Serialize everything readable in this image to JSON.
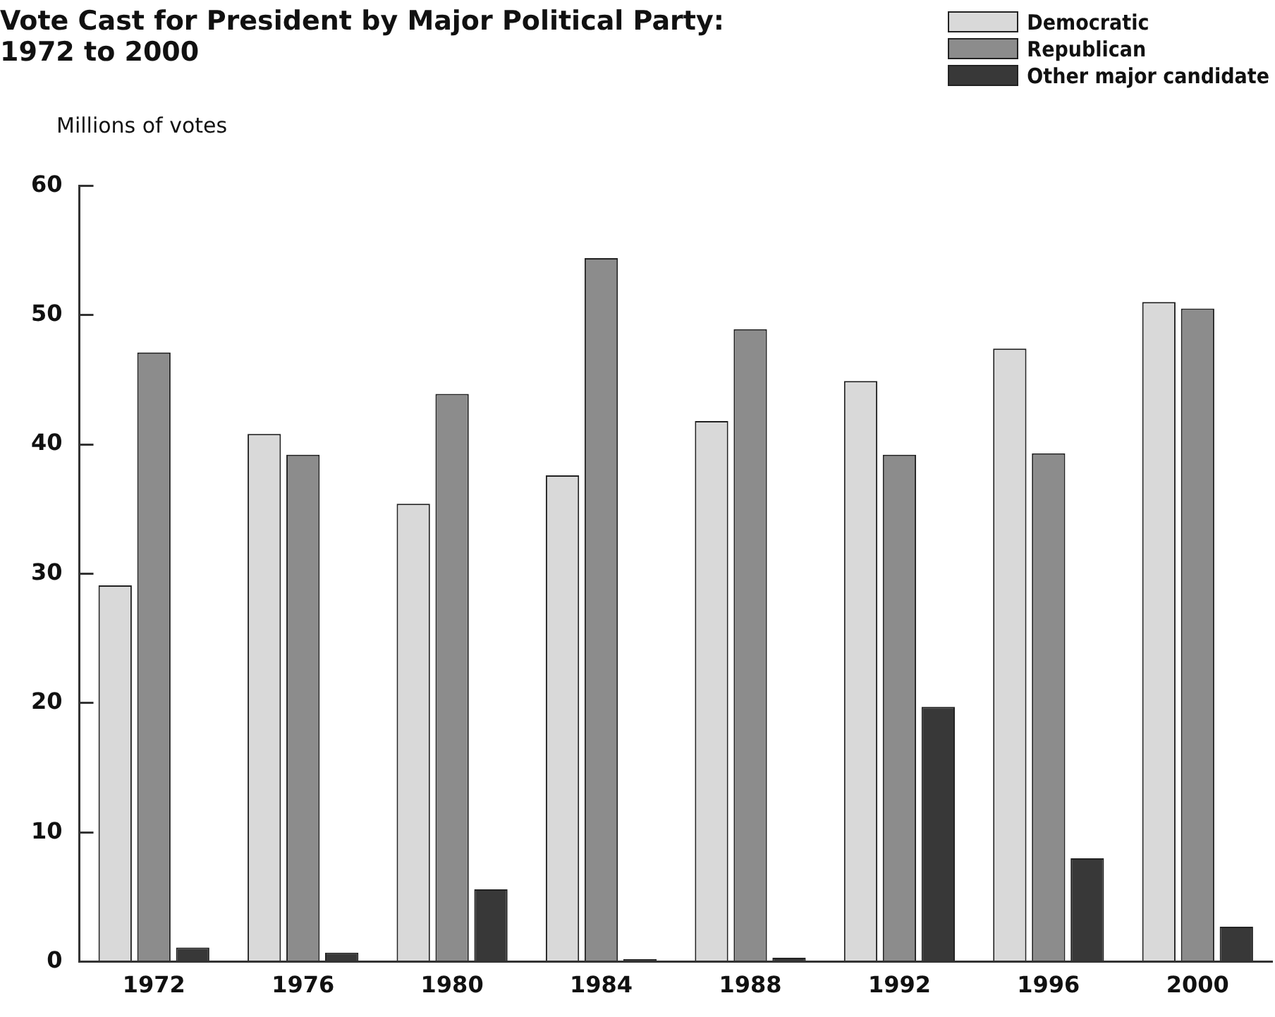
{
  "chart_data": {
    "type": "bar",
    "title": "Vote Cast for President by Major Political Party: 1972 to 2000",
    "ylabel": "Millions of votes",
    "categories": [
      "1972",
      "1976",
      "1980",
      "1984",
      "1988",
      "1992",
      "1996",
      "2000"
    ],
    "series": [
      {
        "name": "Democratic",
        "color": "#d9d9d9",
        "values": [
          29.1,
          40.8,
          35.4,
          37.6,
          41.8,
          44.9,
          47.4,
          51.0
        ]
      },
      {
        "name": "Republican",
        "color": "#8c8c8c",
        "values": [
          47.1,
          39.2,
          43.9,
          54.4,
          48.9,
          39.2,
          39.3,
          50.5
        ]
      },
      {
        "name": "Other major candidate",
        "color": "#383838",
        "values": [
          1.1,
          0.7,
          5.6,
          0.2,
          0.3,
          19.7,
          8.0,
          2.7
        ]
      }
    ],
    "ylim": [
      0,
      60
    ],
    "yticks": [
      0,
      10,
      20,
      30,
      40,
      50,
      60
    ],
    "grid": false,
    "legend": "top right"
  }
}
